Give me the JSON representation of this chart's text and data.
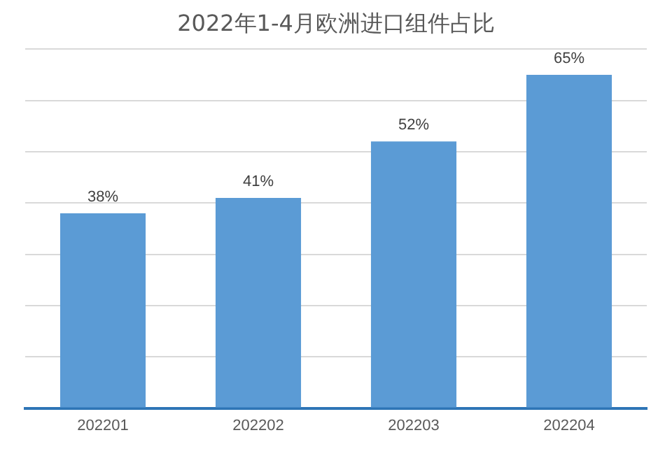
{
  "chart_data": {
    "type": "bar",
    "title": "2022年1-4月欧洲进口组件占比",
    "categories": [
      "202201",
      "202202",
      "202203",
      "202204"
    ],
    "values": [
      38,
      41,
      52,
      65
    ],
    "color": "#5b9bd5",
    "ylim": [
      0,
      70
    ],
    "yticks": [
      {
        "value": 0,
        "label": null
      },
      {
        "value": 10,
        "label": null
      },
      {
        "value": 20,
        "label": null
      },
      {
        "value": 30,
        "label": null
      },
      {
        "value": 40,
        "label": null
      },
      {
        "value": 50,
        "label": null
      },
      {
        "value": 60,
        "label": null
      },
      {
        "value": 70,
        "label": null
      }
    ],
    "value_labels": [
      "38%",
      "41%",
      "52%",
      "65%"
    ],
    "grid": "y",
    "tick_labels": "x",
    "legend": false
  }
}
